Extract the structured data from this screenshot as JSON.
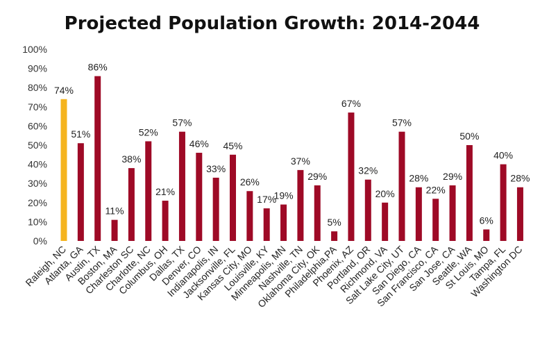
{
  "chart_data": {
    "type": "bar",
    "title": "Projected Population Growth: 2014-2044",
    "xlabel": "",
    "ylabel": "",
    "ylim": [
      0,
      100
    ],
    "yticks": [
      0,
      10,
      20,
      30,
      40,
      50,
      60,
      70,
      80,
      90,
      100
    ],
    "ytick_labels": [
      "0%",
      "10%",
      "20%",
      "30%",
      "40%",
      "50%",
      "60%",
      "70%",
      "80%",
      "90%",
      "100%"
    ],
    "grid": false,
    "legend": "none",
    "colors": {
      "highlight": "#F5B41E",
      "default": "#9E0A26"
    },
    "highlight_index": 0,
    "categories": [
      "Raleigh, NC",
      "Atlanta, GA",
      "Austin, TX",
      "Boston, MA",
      "Charleston SC",
      "Charlotte, NC",
      "Columbus, OH",
      "Dallas, TX",
      "Denver, CO",
      "Indianapolis, IN",
      "Jacksonville, FL",
      "Kansas City, MO",
      "Louisville, KY",
      "Minneapolis, MN",
      "Nashville, TN",
      "Oklahoma City, OK",
      "Philadelphia,PA",
      "Phoenix, AZ",
      "Portland, OR",
      "Richmond, VA",
      "Salt Lake City, UT",
      "San Diego, CA",
      "San Francisco, CA",
      "San Jose, CA",
      "Seattle, WA",
      "St Louis, MO",
      "Tampa, FL",
      "Washington DC"
    ],
    "values": [
      74,
      51,
      86,
      11,
      38,
      52,
      21,
      57,
      46,
      33,
      45,
      26,
      17,
      19,
      37,
      29,
      5,
      67,
      32,
      20,
      57,
      28,
      22,
      29,
      50,
      6,
      40,
      28
    ],
    "data_labels": [
      "74%",
      "51%",
      "86%",
      "11%",
      "38%",
      "52%",
      "21%",
      "57%",
      "46%",
      "33%",
      "45%",
      "26%",
      "17%",
      "19%",
      "37%",
      "29%",
      "5%",
      "67%",
      "32%",
      "20%",
      "57%",
      "28%",
      "22%",
      "29%",
      "50%",
      "6%",
      "40%",
      "28%"
    ]
  }
}
